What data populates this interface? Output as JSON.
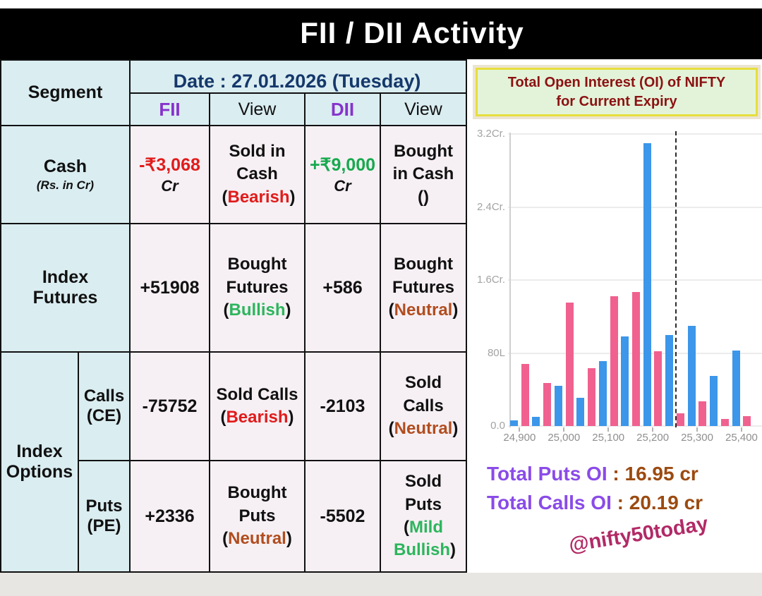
{
  "title": "FII / DII  Activity",
  "punct": {
    "open": "(",
    "close": ")"
  },
  "table": {
    "segment_header": "Segment",
    "date_label": "Date : 27.01.2026 (Tuesday)",
    "columns": {
      "fii": "FII",
      "view1": "View",
      "dii": "DII",
      "view2": "View"
    },
    "rows": {
      "cash": {
        "label": "Cash",
        "sublabel": "(Rs. in Cr)",
        "fii_value": "-₹3,068",
        "fii_unit": "Cr",
        "fii_color": "#e11b1b",
        "fii_view_text": "Sold in Cash",
        "fii_view_tag": "Bearish",
        "fii_view_tag_color": "#e11b1b",
        "dii_value": "+₹9,000",
        "dii_unit": "Cr",
        "dii_color": "#17a94e",
        "dii_view_text": "Bought in Cash",
        "dii_view_tag": "",
        "dii_view_tag_color": "#111111"
      },
      "futures": {
        "label": "Index Futures",
        "fii_value": "+51908",
        "fii_view_text": "Bought Futures",
        "fii_view_tag": "Bullish",
        "fii_view_tag_color": "#2db55d",
        "dii_value": "+586",
        "dii_view_text": "Bought Futures",
        "dii_view_tag": "Neutral",
        "dii_view_tag_color": "#b14d1f"
      },
      "options_label": "Index Options",
      "calls": {
        "label": "Calls (CE)",
        "fii_value": "-75752",
        "fii_view_text": "Sold Calls",
        "fii_view_tag": "Bearish",
        "fii_view_tag_color": "#e11b1b",
        "dii_value": "-2103",
        "dii_view_text": "Sold Calls",
        "dii_view_tag": "Neutral",
        "dii_view_tag_color": "#b14d1f"
      },
      "puts": {
        "label": "Puts (PE)",
        "fii_value": "+2336",
        "fii_view_text": "Bought Puts",
        "fii_view_tag": "Neutral",
        "fii_view_tag_color": "#b14d1f",
        "dii_value": "-5502",
        "dii_view_text": "Sold Puts",
        "dii_view_tag": "Mild Bullish",
        "dii_view_tag_color": "#2db55d"
      }
    }
  },
  "oi_panel": {
    "box_title_line1": "Total Open Interest (OI) of NIFTY",
    "box_title_line2": "for Current Expiry",
    "totals": {
      "puts_label": "Total Puts OI",
      "puts_sep": "  : ",
      "puts_value": "16.95 cr",
      "calls_label": "Total Calls OI",
      "calls_sep": " : ",
      "calls_value": "20.19 cr"
    },
    "watermark": "@nifty50today"
  },
  "chart_data": {
    "type": "bar",
    "title": "Total Open Interest (OI) of NIFTY for Current Expiry",
    "unit": "Cr",
    "strikes": [
      24900,
      24950,
      25000,
      25050,
      25100,
      25150,
      25200,
      25250,
      25300,
      25350,
      25400
    ],
    "series": [
      {
        "name": "Calls (blue)",
        "color": "#3c96e9",
        "values": [
          0.06,
          0.1,
          0.44,
          0.31,
          0.71,
          0.98,
          3.1,
          1.0,
          1.1,
          0.55,
          0.83
        ]
      },
      {
        "name": "Puts (pink)",
        "color": "#f06190",
        "values": [
          0.68,
          0.47,
          1.35,
          0.63,
          1.42,
          1.47,
          0.82,
          0.14,
          0.27,
          0.08,
          0.11
        ]
      }
    ],
    "y_ticks": [
      {
        "label": "0.0",
        "value": 0
      },
      {
        "label": "80L",
        "value": 0.8
      },
      {
        "label": "1.6Cr.",
        "value": 1.6
      },
      {
        "label": "2.4Cr.",
        "value": 2.4
      },
      {
        "label": "3.2Cr.",
        "value": 3.2
      }
    ],
    "ylim": [
      0,
      3.2
    ],
    "x_tick_labels": [
      "24,900",
      "25,000",
      "25,100",
      "25,200",
      "25,300",
      "25,400"
    ],
    "x_tick_strikes": [
      24900,
      25000,
      25100,
      25200,
      25300,
      25400
    ],
    "spot_marker_strike": 25250,
    "grid": "horizontal",
    "legend_position": "none"
  }
}
